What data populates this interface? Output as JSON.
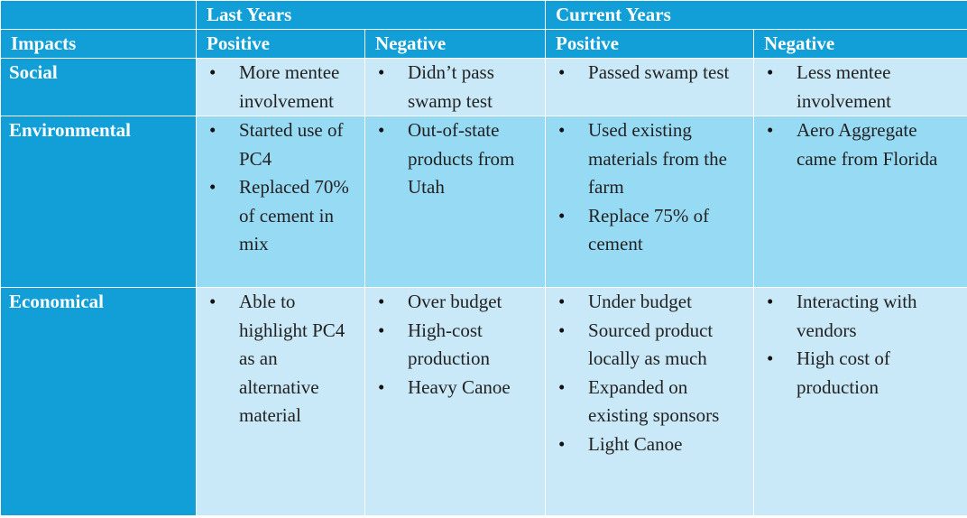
{
  "group_headers": [
    "Last Years",
    "Current Years"
  ],
  "col_headers": [
    "Impacts",
    "Positive",
    "Negative",
    "Positive",
    "Negative"
  ],
  "rows": [
    {
      "label": "Social",
      "cells": [
        [
          "More mentee involvement"
        ],
        [
          "Didn’t pass swamp test"
        ],
        [
          "Passed swamp test"
        ],
        [
          "Less mentee involvement"
        ]
      ]
    },
    {
      "label": "Environmental",
      "cells": [
        [
          "Started use of PC4",
          "Replaced 70% of cement in mix"
        ],
        [
          "Out-of-state products from Utah"
        ],
        [
          "Used existing materials from the farm",
          "Replace 75% of cement"
        ],
        [
          "Aero Aggregate came from Florida"
        ]
      ]
    },
    {
      "label": "Economical",
      "cells": [
        [
          "Able to highlight PC4 as an alternative material"
        ],
        [
          "Over budget",
          "High-cost production",
          "Heavy Canoe"
        ],
        [
          "Under budget",
          "Sourced product locally as much",
          "Expanded on existing sponsors",
          "Light Canoe"
        ],
        [
          "Interacting with vendors",
          "High cost of production"
        ]
      ]
    }
  ],
  "colors": {
    "header_bg": "#129fd8",
    "header_text": "#ffffff",
    "cell_light": "#c9e9f8",
    "cell_mid": "#97daf4"
  }
}
